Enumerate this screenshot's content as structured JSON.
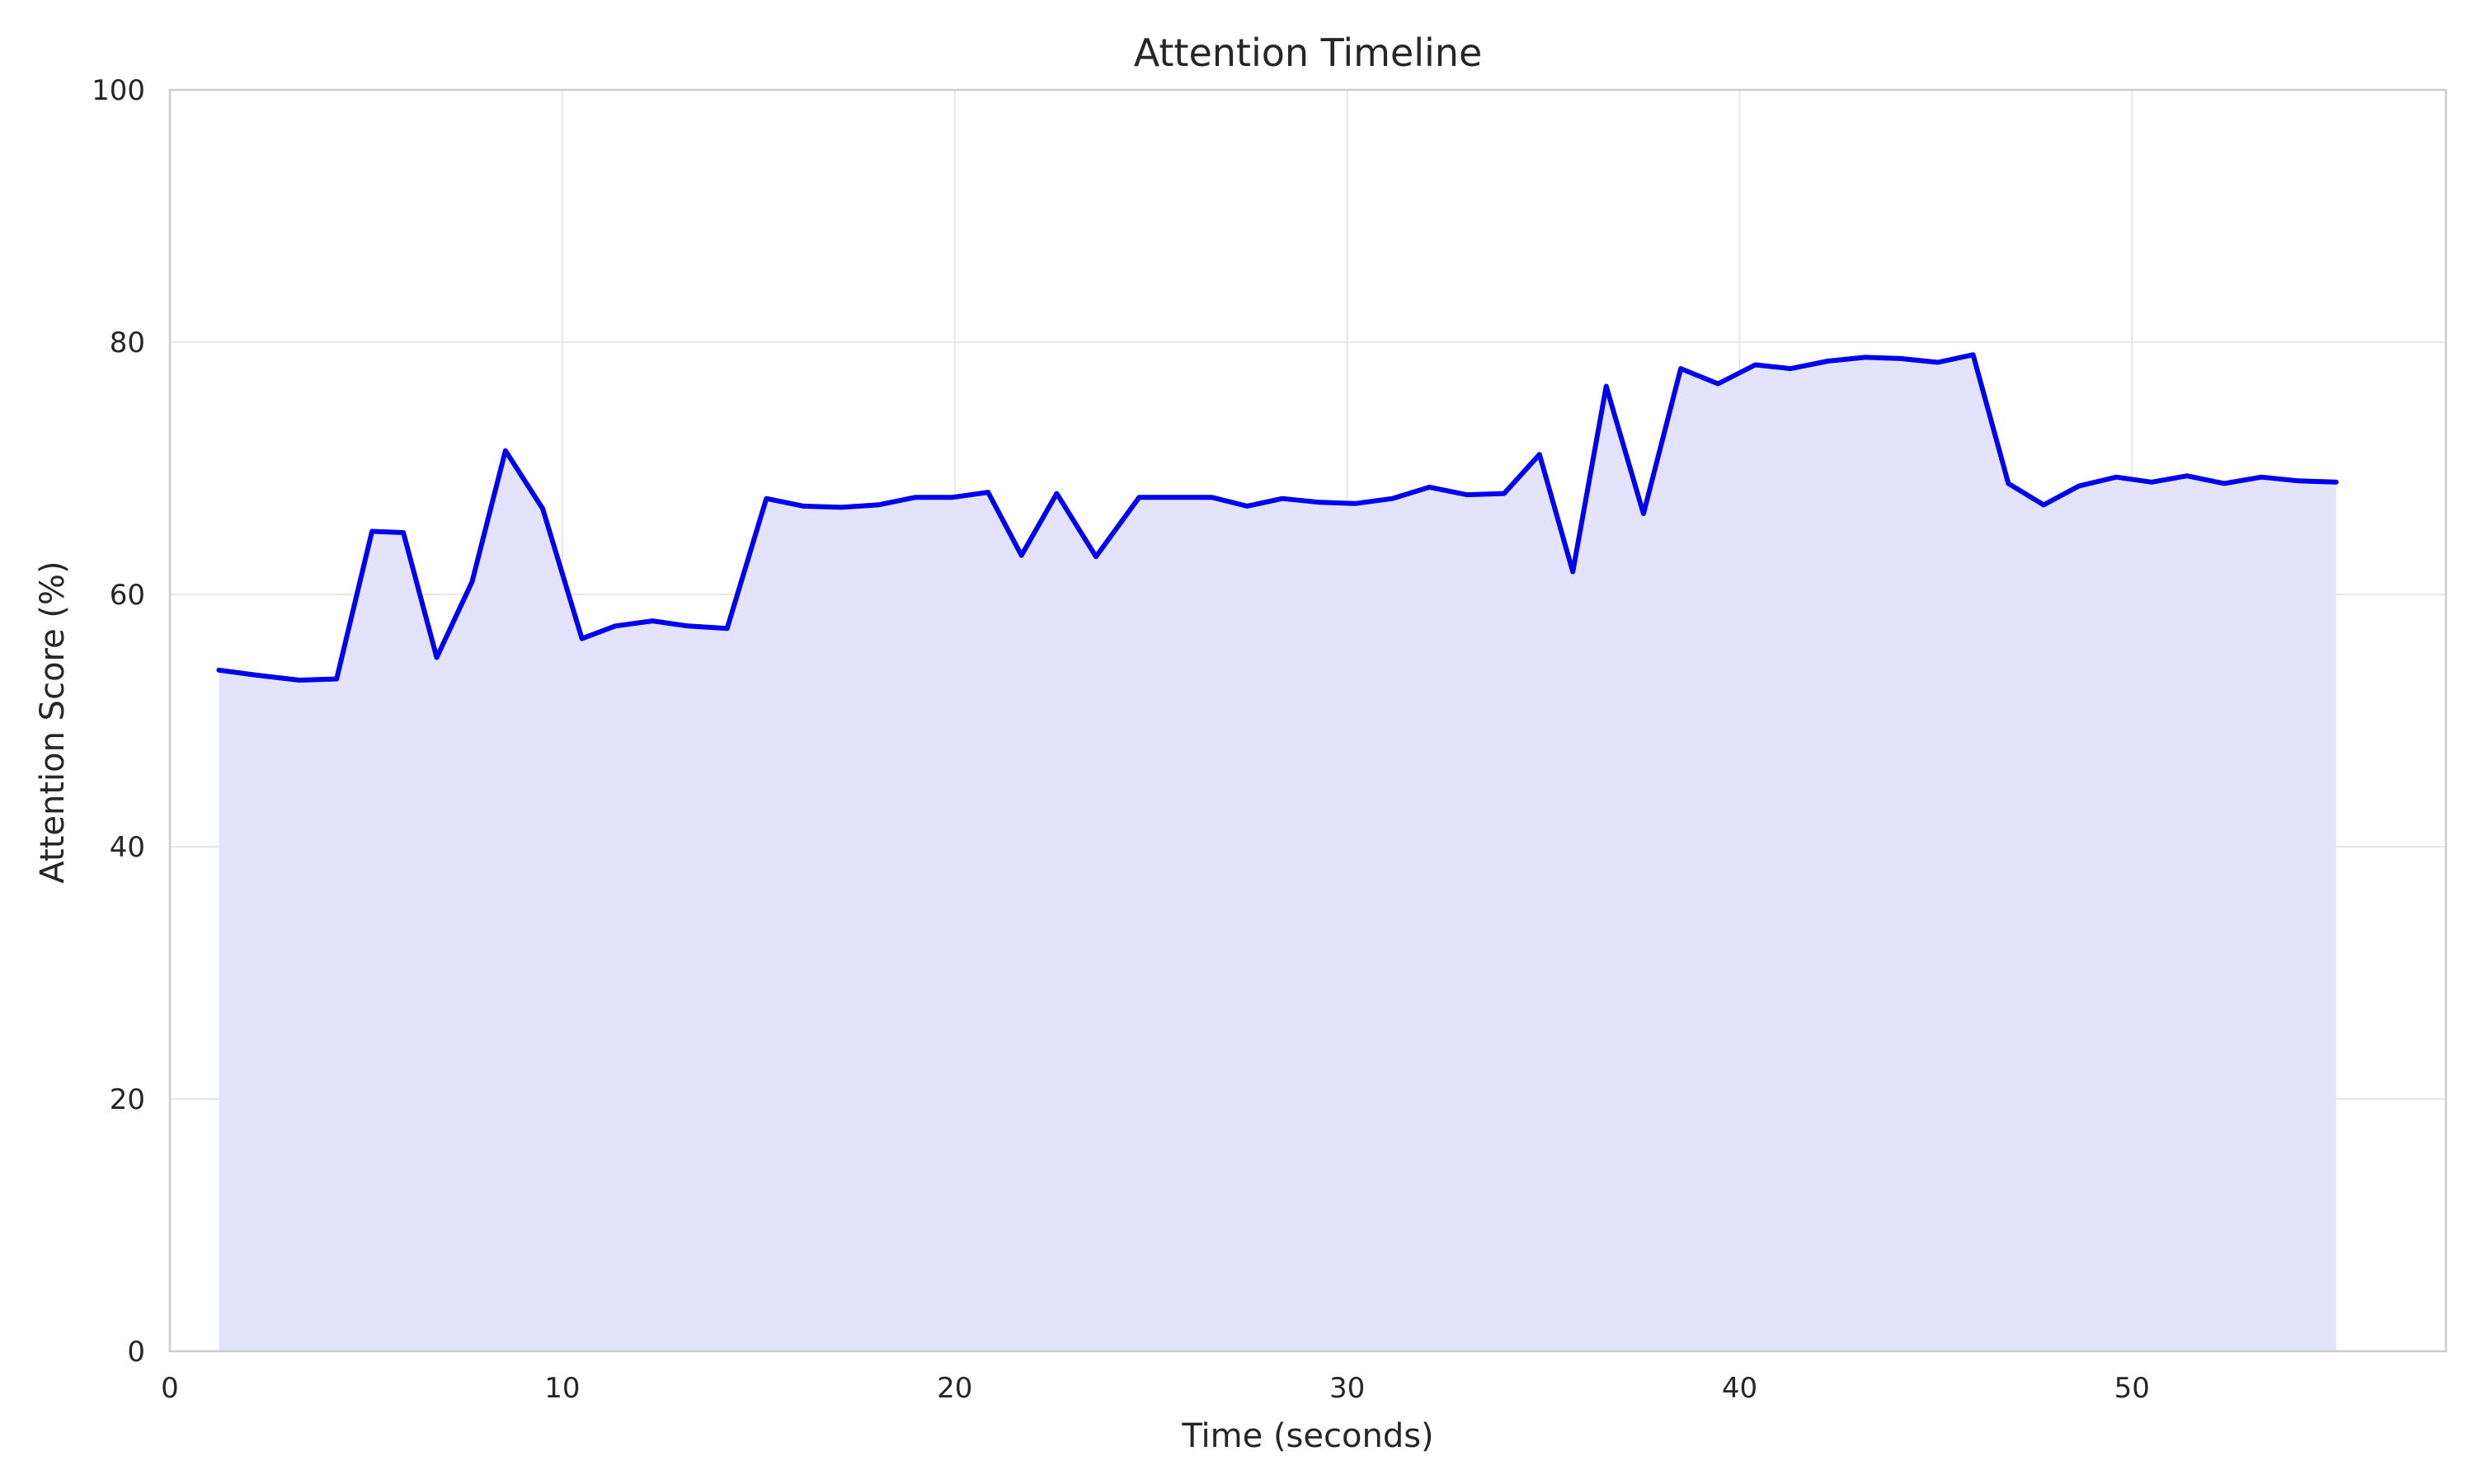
{
  "chart_data": {
    "type": "area",
    "title": "Attention Timeline",
    "xlabel": "Time (seconds)",
    "ylabel": "Attention Score (%)",
    "xlim": [
      0,
      58
    ],
    "ylim": [
      0,
      100
    ],
    "xticks": [
      0,
      10,
      20,
      30,
      40,
      50
    ],
    "yticks": [
      0,
      20,
      40,
      60,
      80,
      100
    ],
    "grid": true,
    "legend": "none",
    "colors": {
      "line": "#0000ee",
      "fill": "#e3e3fe",
      "grid": "#e6e6e6",
      "border": "#cccccc"
    },
    "series": [
      {
        "x": [
          1.25,
          2.2,
          3.3,
          4.25,
          5.15,
          5.95,
          6.8,
          7.7,
          8.55,
          9.5,
          10.5,
          11.35,
          12.3,
          13.2,
          14.2,
          15.2,
          16.15,
          17.1,
          18.05,
          19.0,
          19.95,
          20.85,
          21.7,
          22.6,
          23.6,
          24.7,
          25.6,
          26.55,
          27.45,
          28.35,
          29.3,
          30.2,
          31.15,
          32.1,
          33.05,
          34.0,
          34.9,
          35.75,
          36.6,
          37.55,
          38.5,
          39.45,
          40.4,
          41.3,
          42.25,
          43.2,
          44.1,
          45.05,
          45.95,
          46.85,
          47.75,
          48.65,
          49.6,
          50.5,
          51.4,
          52.35,
          53.3,
          54.25,
          55.2
        ],
        "values": [
          54.0,
          53.6,
          53.2,
          53.3,
          65.0,
          64.9,
          55.0,
          61.0,
          71.4,
          66.8,
          56.5,
          57.5,
          57.9,
          57.5,
          57.3,
          67.6,
          67.0,
          66.9,
          67.1,
          67.7,
          67.7,
          68.1,
          63.1,
          68.0,
          63.0,
          67.7,
          67.7,
          67.7,
          67.0,
          67.6,
          67.3,
          67.2,
          67.6,
          68.5,
          67.9,
          68.0,
          71.1,
          61.8,
          76.5,
          66.4,
          77.9,
          76.7,
          78.2,
          77.9,
          78.5,
          78.8,
          78.7,
          78.4,
          79.0,
          68.8,
          67.1,
          68.6,
          69.3,
          68.9,
          69.4,
          68.8,
          69.3,
          69.0,
          68.9
        ]
      }
    ]
  }
}
